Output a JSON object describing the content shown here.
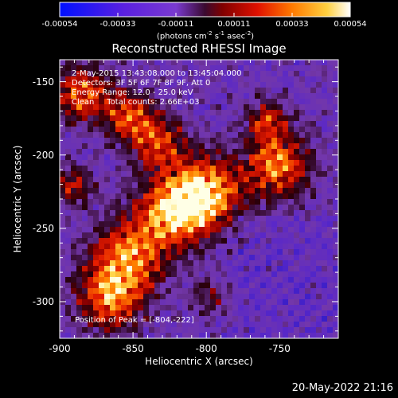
{
  "colorbar": {
    "ticks": [
      "-0.00054",
      "-0.00033",
      "-0.00011",
      "0.00011",
      "0.00033",
      "0.00054"
    ],
    "units_base": "(photons cm",
    "units_exp1": "-2",
    "units_mid1": " s",
    "units_exp2": "-1",
    "units_mid2": " asec",
    "units_exp3": "-2",
    "units_end": ")"
  },
  "plot": {
    "title": "Reconstructed RHESSI Image",
    "info_lines": [
      "2-May-2015 13:43:08.000 to 13:45:04.000",
      "Detectors: 3F 5F 6F 7F 8F 9F, Att 0",
      "Energy Range: 12.0 - 25.0 keV",
      "Clean     Total counts: 2.66E+03"
    ],
    "peak_label": "Position of Peak = [-804,-222]"
  },
  "chart_data": {
    "type": "heatmap",
    "title": "Reconstructed RHESSI Image",
    "xlabel": "Heliocentric X (arcsec)",
    "ylabel": "Heliocentric Y (arcsec)",
    "xlim": [
      -900,
      -710
    ],
    "ylim": [
      -325,
      -135
    ],
    "xticks": [
      "-900",
      "-850",
      "-800",
      "-750"
    ],
    "xtick_values": [
      -900,
      -850,
      -800,
      -750
    ],
    "yticks": [
      "-150",
      "-200",
      "-250",
      "-300"
    ],
    "ytick_values": [
      -150,
      -200,
      -250,
      -300
    ],
    "peak": [
      -804,
      -222
    ],
    "colorbar_range": [
      -0.00054,
      0.00054
    ]
  },
  "timestamp": "20-May-2022 21:16"
}
